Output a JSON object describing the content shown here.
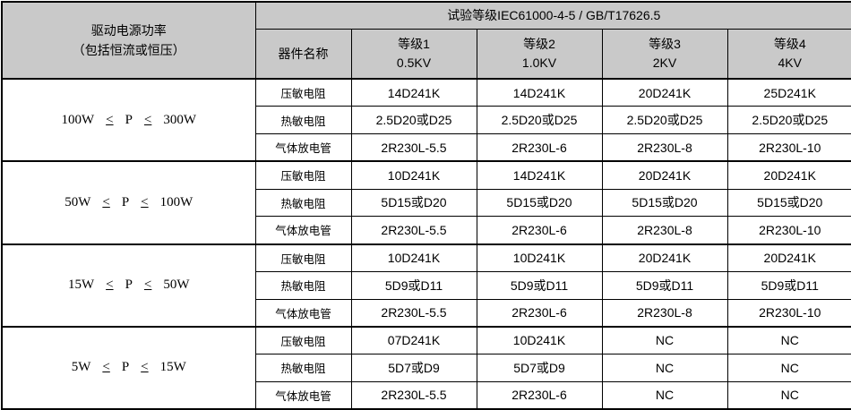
{
  "table": {
    "header": {
      "power_title": "驱动电源功率",
      "power_subtitle": "（包括恒流或恒压）",
      "test_level_title": "试验等级IEC61000-4-5 / GB/T17626.5",
      "component_col": "器件名称",
      "levels": [
        {
          "name": "等级1",
          "voltage": "0.5KV"
        },
        {
          "name": "等级2",
          "voltage": "1.0KV"
        },
        {
          "name": "等级3",
          "voltage": "2KV"
        },
        {
          "name": "等级4",
          "voltage": "4KV"
        }
      ]
    },
    "symbols": {
      "leq": "<"
    },
    "groups": [
      {
        "power": {
          "min": "100W",
          "variable": "P",
          "max": "300W"
        },
        "components": [
          {
            "name": "压敏电阻",
            "values": [
              "14D241K",
              "14D241K",
              "20D241K",
              "25D241K"
            ]
          },
          {
            "name": "热敏电阻",
            "values": [
              "2.5D20或D25",
              "2.5D20或D25",
              "2.5D20或D25",
              "2.5D20或D25"
            ]
          },
          {
            "name": "气体放电管",
            "values": [
              "2R230L-5.5",
              "2R230L-6",
              "2R230L-8",
              "2R230L-10"
            ]
          }
        ]
      },
      {
        "power": {
          "min": "50W",
          "variable": "P",
          "max": "100W"
        },
        "components": [
          {
            "name": "压敏电阻",
            "values": [
              "10D241K",
              "14D241K",
              "20D241K",
              "20D241K"
            ]
          },
          {
            "name": "热敏电阻",
            "values": [
              "5D15或D20",
              "5D15或D20",
              "5D15或D20",
              "5D15或D20"
            ]
          },
          {
            "name": "气体放电管",
            "values": [
              "2R230L-5.5",
              "2R230L-6",
              "2R230L-8",
              "2R230L-10"
            ]
          }
        ]
      },
      {
        "power": {
          "min": "15W",
          "variable": "P",
          "max": "50W"
        },
        "components": [
          {
            "name": "压敏电阻",
            "values": [
              "10D241K",
              "10D241K",
              "20D241K",
              "20D241K"
            ]
          },
          {
            "name": "热敏电阻",
            "values": [
              "5D9或D11",
              "5D9或D11",
              "5D9或D11",
              "5D9或D11"
            ]
          },
          {
            "name": "气体放电管",
            "values": [
              "2R230L-5.5",
              "2R230L-6",
              "2R230L-8",
              "2R230L-10"
            ]
          }
        ]
      },
      {
        "power": {
          "min": "5W",
          "variable": "P",
          "max": "15W"
        },
        "components": [
          {
            "name": "压敏电阻",
            "values": [
              "07D241K",
              "10D241K",
              "NC",
              "NC"
            ]
          },
          {
            "name": "热敏电阻",
            "values": [
              "5D7或D9",
              "5D7或D9",
              "NC",
              "NC"
            ]
          },
          {
            "name": "气体放电管",
            "values": [
              "2R230L-5.5",
              "2R230L-6",
              "NC",
              "NC"
            ]
          }
        ]
      }
    ],
    "colors": {
      "header_bg": "#c9c9c9",
      "border": "#000000",
      "background": "#ffffff",
      "text": "#000000"
    }
  }
}
